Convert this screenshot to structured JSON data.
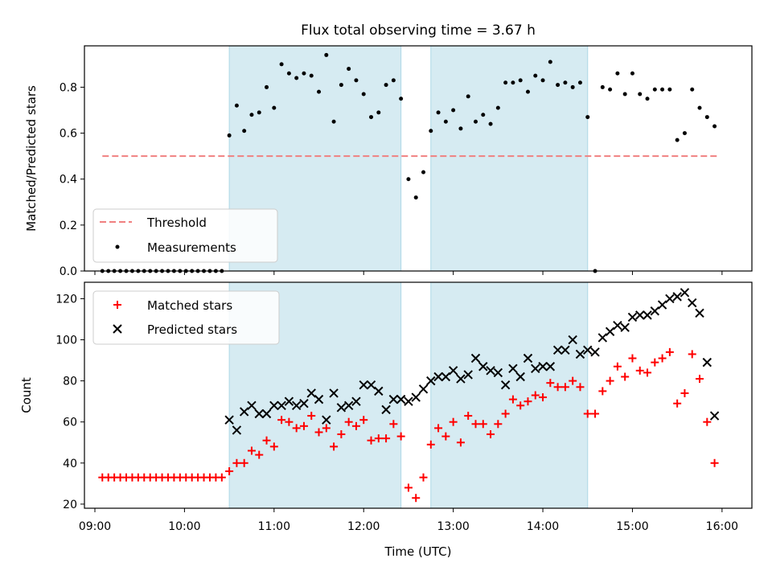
{
  "figure": {
    "title": "Flux total observing time = 3.67 h",
    "xlabel": "Time (UTC)",
    "x_tick_labels": [
      "09:00",
      "10:00",
      "11:00",
      "12:00",
      "13:00",
      "14:00",
      "15:00",
      "16:00"
    ]
  },
  "chart_data": [
    {
      "type": "scatter",
      "ylabel": "Matched/Predicted stars",
      "xlim": [
        "08:53",
        "16:20"
      ],
      "ylim": [
        0,
        0.98
      ],
      "y_ticks": [
        0.0,
        0.2,
        0.4,
        0.6,
        0.8
      ],
      "y_tick_labels": [
        "0.0",
        "0.2",
        "0.4",
        "0.6",
        "0.8"
      ],
      "grid": false,
      "legend": "lower-left",
      "shaded_intervals": [
        [
          "10:30",
          "12:25"
        ],
        [
          "12:45",
          "14:30"
        ]
      ],
      "threshold": {
        "name": "Threshold",
        "value": 0.5,
        "x_range": [
          "09:05",
          "15:57"
        ],
        "color": "#f08080"
      },
      "series": [
        {
          "name": "Measurements",
          "color": "#000000",
          "x": [
            "09:05",
            "09:09",
            "09:13",
            "09:17",
            "09:21",
            "09:25",
            "09:29",
            "09:33",
            "09:37",
            "09:41",
            "09:45",
            "09:49",
            "09:53",
            "09:57",
            "10:01",
            "10:05",
            "10:09",
            "10:13",
            "10:17",
            "10:21",
            "10:25",
            "10:30",
            "10:35",
            "10:40",
            "10:45",
            "10:50",
            "10:55",
            "11:00",
            "11:05",
            "11:10",
            "11:15",
            "11:20",
            "11:25",
            "11:30",
            "11:35",
            "11:40",
            "11:45",
            "11:50",
            "11:55",
            "12:00",
            "12:05",
            "12:10",
            "12:15",
            "12:20",
            "12:25",
            "12:30",
            "12:35",
            "12:40",
            "12:45",
            "12:50",
            "12:55",
            "13:00",
            "13:05",
            "13:10",
            "13:15",
            "13:20",
            "13:25",
            "13:30",
            "13:35",
            "13:40",
            "13:45",
            "13:50",
            "13:55",
            "14:00",
            "14:05",
            "14:10",
            "14:15",
            "14:20",
            "14:25",
            "14:30",
            "14:35",
            "14:40",
            "14:45",
            "14:50",
            "14:55",
            "15:00",
            "15:05",
            "15:10",
            "15:15",
            "15:20",
            "15:25",
            "15:30",
            "15:35",
            "15:40",
            "15:45",
            "15:50",
            "15:55"
          ],
          "y": [
            0,
            0,
            0,
            0,
            0,
            0,
            0,
            0,
            0,
            0,
            0,
            0,
            0,
            0,
            0,
            0,
            0,
            0,
            0,
            0,
            0,
            0.59,
            0.72,
            0.61,
            0.68,
            0.69,
            0.8,
            0.71,
            0.9,
            0.86,
            0.84,
            0.86,
            0.85,
            0.78,
            0.94,
            0.65,
            0.81,
            0.88,
            0.83,
            0.77,
            0.67,
            0.69,
            0.81,
            0.83,
            0.75,
            0.4,
            0.32,
            0.43,
            0.61,
            0.69,
            0.65,
            0.7,
            0.62,
            0.76,
            0.65,
            0.68,
            0.64,
            0.71,
            0.82,
            0.82,
            0.83,
            0.78,
            0.85,
            0.83,
            0.91,
            0.81,
            0.82,
            0.8,
            0.82,
            0.67,
            0.0,
            0.8,
            0.79,
            0.86,
            0.77,
            0.86,
            0.77,
            0.75,
            0.79,
            0.79,
            0.79,
            0.57,
            0.6,
            0.79,
            0.71,
            0.67,
            0.63
          ]
        }
      ]
    },
    {
      "type": "scatter",
      "ylabel": "Count",
      "xlim": [
        "08:53",
        "16:20"
      ],
      "ylim": [
        18,
        128
      ],
      "y_ticks": [
        20,
        40,
        60,
        80,
        100,
        120
      ],
      "y_tick_labels": [
        "20",
        "40",
        "60",
        "80",
        "100",
        "120"
      ],
      "grid": false,
      "legend": "upper-left",
      "shaded_intervals": [
        [
          "10:30",
          "12:25"
        ],
        [
          "12:45",
          "14:30"
        ]
      ],
      "series": [
        {
          "name": "Matched stars",
          "color": "#ff0000",
          "marker": "+",
          "x": [
            "09:05",
            "09:09",
            "09:13",
            "09:17",
            "09:21",
            "09:25",
            "09:29",
            "09:33",
            "09:37",
            "09:41",
            "09:45",
            "09:49",
            "09:53",
            "09:57",
            "10:01",
            "10:05",
            "10:09",
            "10:13",
            "10:17",
            "10:21",
            "10:25",
            "10:30",
            "10:35",
            "10:40",
            "10:45",
            "10:50",
            "10:55",
            "11:00",
            "11:05",
            "11:10",
            "11:15",
            "11:20",
            "11:25",
            "11:30",
            "11:35",
            "11:40",
            "11:45",
            "11:50",
            "11:55",
            "12:00",
            "12:05",
            "12:10",
            "12:15",
            "12:20",
            "12:25",
            "12:30",
            "12:35",
            "12:40",
            "12:45",
            "12:50",
            "12:55",
            "13:00",
            "13:05",
            "13:10",
            "13:15",
            "13:20",
            "13:25",
            "13:30",
            "13:35",
            "13:40",
            "13:45",
            "13:50",
            "13:55",
            "14:00",
            "14:05",
            "14:10",
            "14:15",
            "14:20",
            "14:25",
            "14:30",
            "14:35",
            "14:40",
            "14:45",
            "14:50",
            "14:55",
            "15:00",
            "15:05",
            "15:10",
            "15:15",
            "15:20",
            "15:25",
            "15:30",
            "15:35",
            "15:40",
            "15:45",
            "15:50",
            "15:55"
          ],
          "y": [
            33,
            33,
            33,
            33,
            33,
            33,
            33,
            33,
            33,
            33,
            33,
            33,
            33,
            33,
            33,
            33,
            33,
            33,
            33,
            33,
            33,
            36,
            40,
            40,
            46,
            44,
            51,
            48,
            61,
            60,
            57,
            58,
            63,
            55,
            57,
            48,
            54,
            60,
            58,
            61,
            51,
            52,
            52,
            59,
            53,
            28,
            23,
            33,
            49,
            57,
            53,
            60,
            50,
            63,
            59,
            59,
            54,
            59,
            64,
            71,
            68,
            70,
            73,
            72,
            79,
            77,
            77,
            80,
            77,
            64,
            64,
            75,
            80,
            87,
            82,
            91,
            85,
            84,
            89,
            91,
            94,
            69,
            74,
            93,
            81,
            60,
            40
          ]
        },
        {
          "name": "Predicted stars",
          "color": "#000000",
          "marker": "x",
          "x": [
            "10:30",
            "10:35",
            "10:40",
            "10:45",
            "10:50",
            "10:55",
            "11:00",
            "11:05",
            "11:10",
            "11:15",
            "11:20",
            "11:25",
            "11:30",
            "11:35",
            "11:40",
            "11:45",
            "11:50",
            "11:55",
            "12:00",
            "12:05",
            "12:10",
            "12:15",
            "12:20",
            "12:25",
            "12:30",
            "12:35",
            "12:40",
            "12:45",
            "12:50",
            "12:55",
            "13:00",
            "13:05",
            "13:10",
            "13:15",
            "13:20",
            "13:25",
            "13:30",
            "13:35",
            "13:40",
            "13:45",
            "13:50",
            "13:55",
            "14:00",
            "14:05",
            "14:10",
            "14:15",
            "14:20",
            "14:25",
            "14:30",
            "14:35",
            "14:40",
            "14:45",
            "14:50",
            "14:55",
            "15:00",
            "15:05",
            "15:10",
            "15:15",
            "15:20",
            "15:25",
            "15:30",
            "15:35",
            "15:40",
            "15:45",
            "15:50",
            "15:55"
          ],
          "y": [
            61,
            56,
            65,
            68,
            64,
            64,
            68,
            68,
            70,
            68,
            69,
            74,
            71,
            61,
            74,
            67,
            68,
            70,
            78,
            78,
            75,
            66,
            71,
            71,
            70,
            72,
            76,
            80,
            82,
            82,
            85,
            81,
            83,
            91,
            87,
            85,
            84,
            78,
            86,
            82,
            91,
            86,
            87,
            87,
            95,
            95,
            100,
            93,
            95,
            94,
            101,
            104,
            107,
            106,
            111,
            112,
            112,
            114,
            117,
            120,
            121,
            123,
            118,
            113,
            89,
            63
          ]
        }
      ]
    }
  ]
}
